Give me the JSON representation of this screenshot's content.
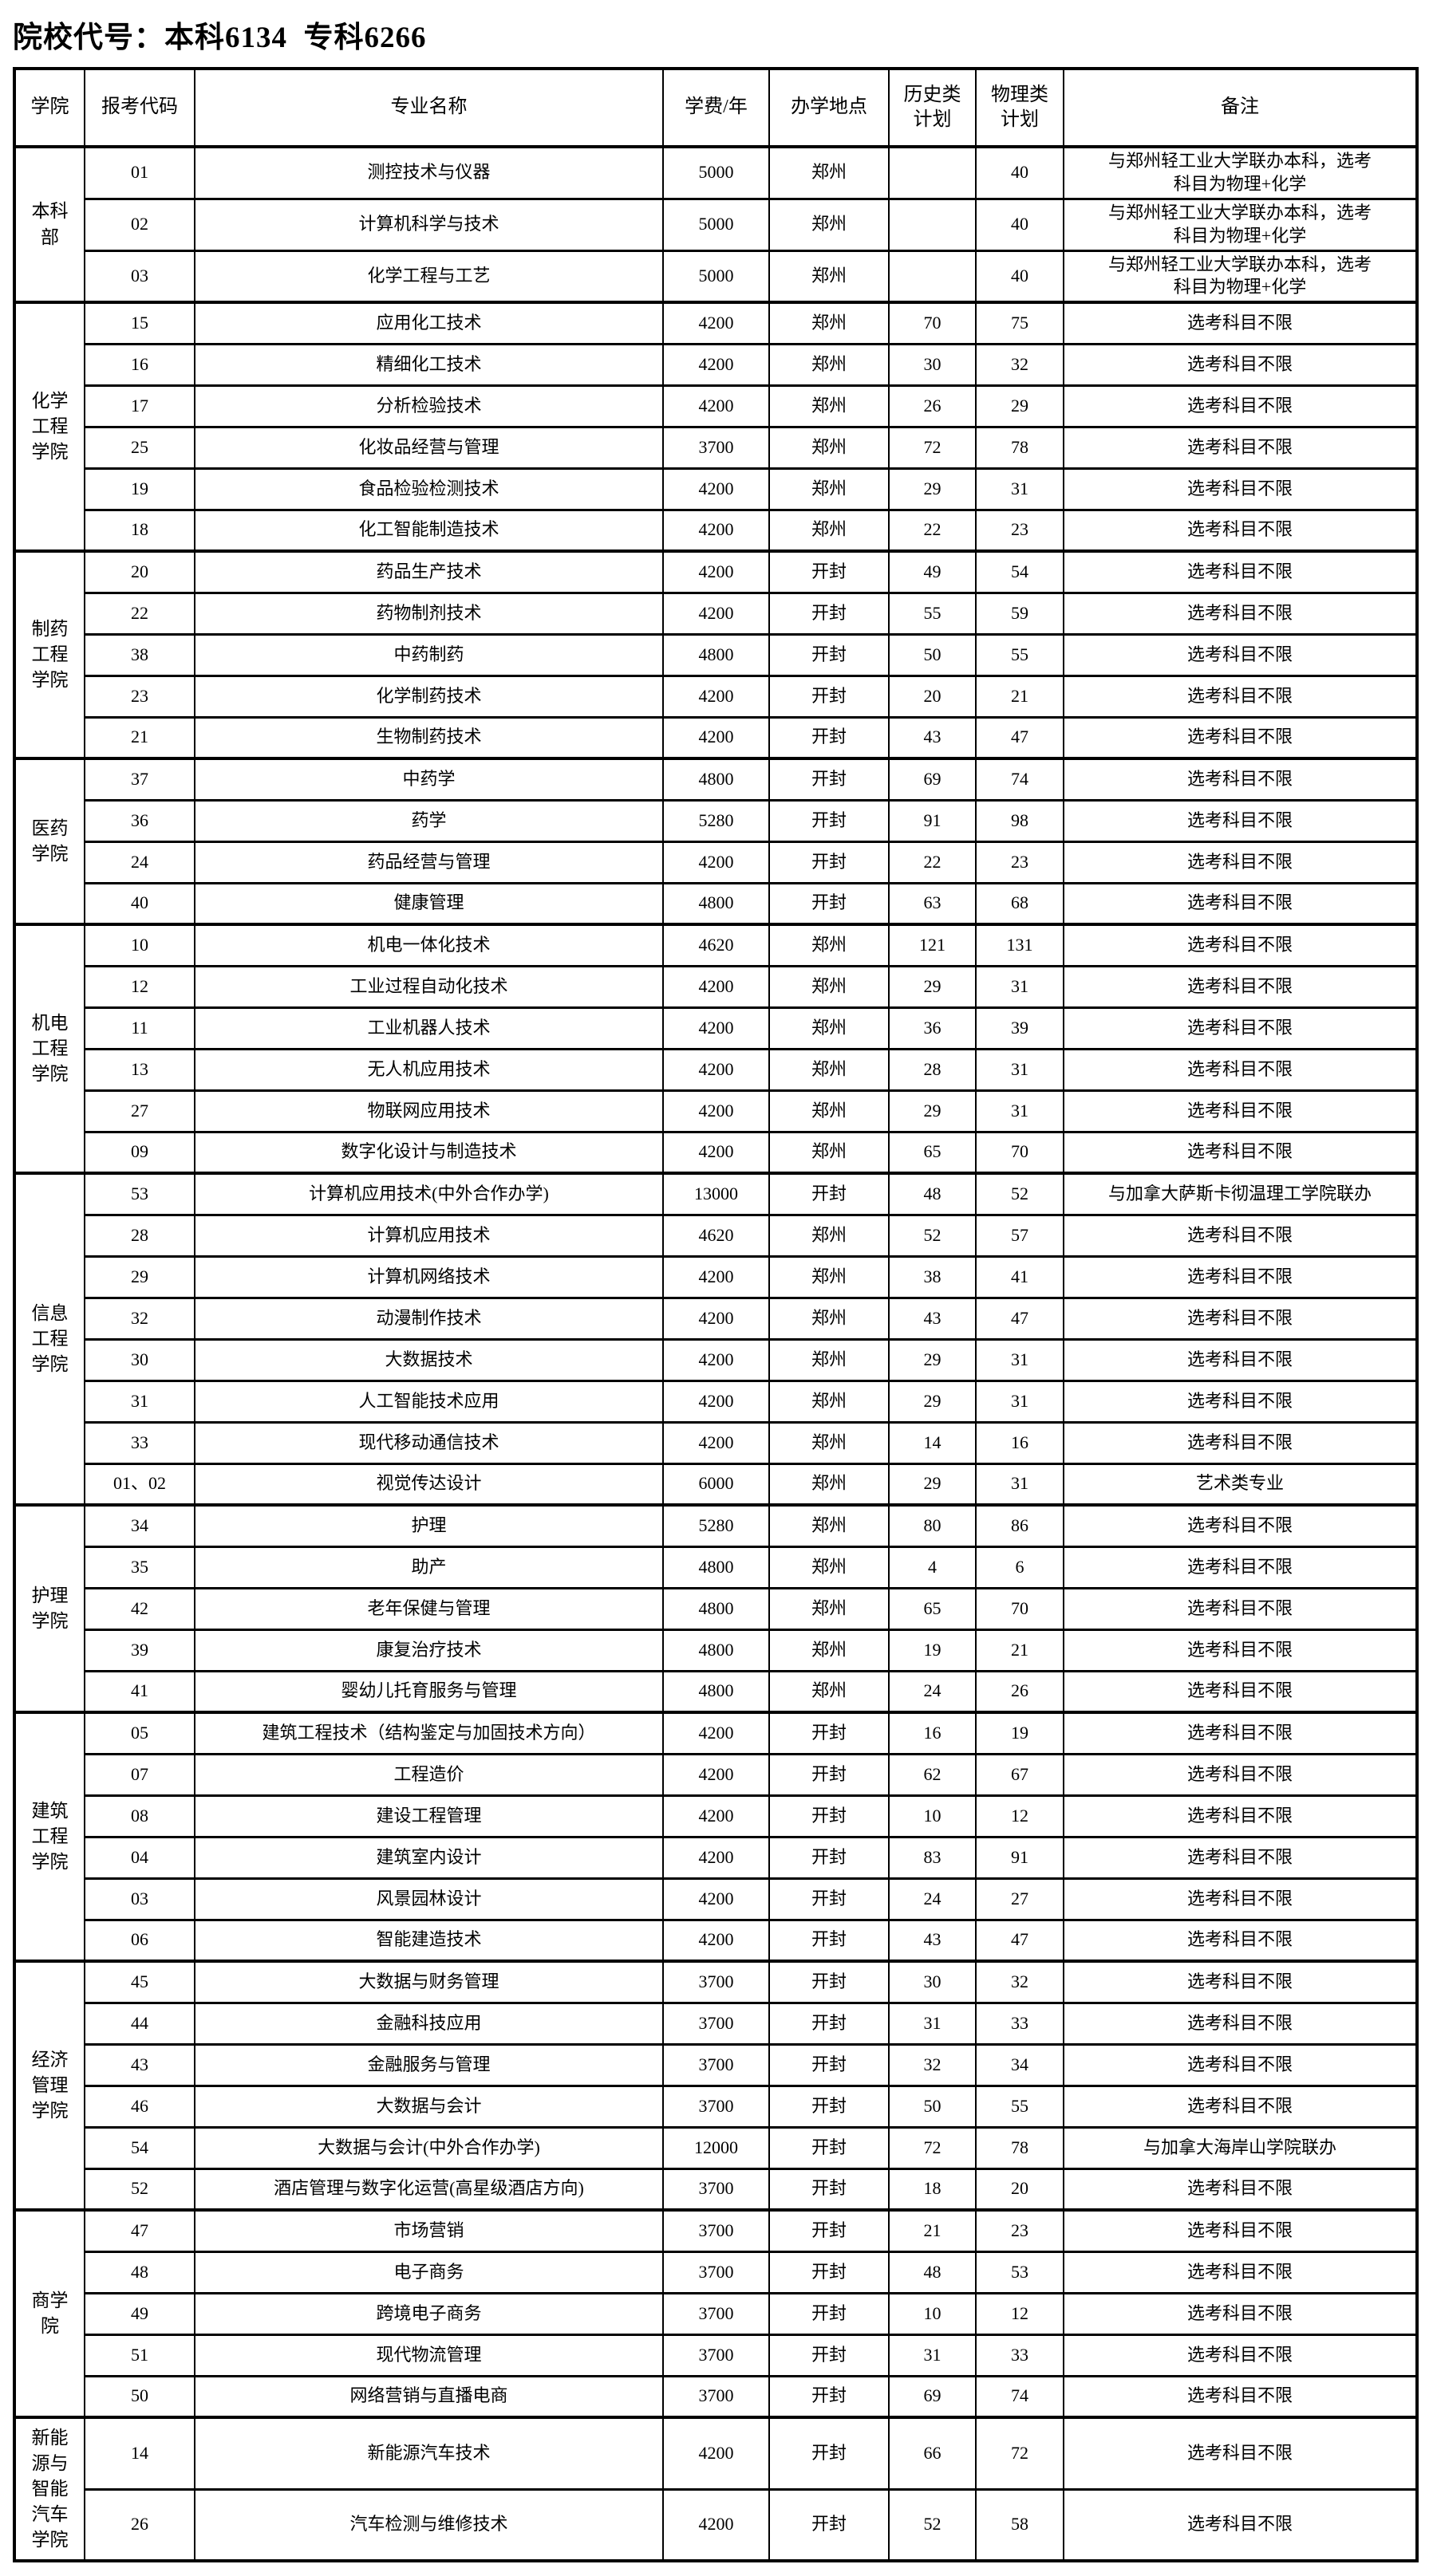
{
  "title": "院校代号：本科6134  专科6266",
  "table": {
    "columns": [
      "学院",
      "报考代码",
      "专业名称",
      "学费/年",
      "办学地点",
      "历史类\n计划",
      "物理类\n计划",
      "备注"
    ],
    "sections": [
      {
        "college": "本科\n部",
        "rows": [
          {
            "code": "01",
            "major": "测控技术与仪器",
            "fee": "5000",
            "place": "郑州",
            "hist": "",
            "phys": "40",
            "remark": "与郑州轻工业大学联办本科，选考\n科目为物理+化学"
          },
          {
            "code": "02",
            "major": "计算机科学与技术",
            "fee": "5000",
            "place": "郑州",
            "hist": "",
            "phys": "40",
            "remark": "与郑州轻工业大学联办本科，选考\n科目为物理+化学"
          },
          {
            "code": "03",
            "major": "化学工程与工艺",
            "fee": "5000",
            "place": "郑州",
            "hist": "",
            "phys": "40",
            "remark": "与郑州轻工业大学联办本科，选考\n科目为物理+化学"
          }
        ]
      },
      {
        "college": "化学\n工程\n学院",
        "rows": [
          {
            "code": "15",
            "major": "应用化工技术",
            "fee": "4200",
            "place": "郑州",
            "hist": "70",
            "phys": "75",
            "remark": "选考科目不限"
          },
          {
            "code": "16",
            "major": "精细化工技术",
            "fee": "4200",
            "place": "郑州",
            "hist": "30",
            "phys": "32",
            "remark": "选考科目不限"
          },
          {
            "code": "17",
            "major": "分析检验技术",
            "fee": "4200",
            "place": "郑州",
            "hist": "26",
            "phys": "29",
            "remark": "选考科目不限"
          },
          {
            "code": "25",
            "major": "化妆品经营与管理",
            "fee": "3700",
            "place": "郑州",
            "hist": "72",
            "phys": "78",
            "remark": "选考科目不限"
          },
          {
            "code": "19",
            "major": "食品检验检测技术",
            "fee": "4200",
            "place": "郑州",
            "hist": "29",
            "phys": "31",
            "remark": "选考科目不限"
          },
          {
            "code": "18",
            "major": "化工智能制造技术",
            "fee": "4200",
            "place": "郑州",
            "hist": "22",
            "phys": "23",
            "remark": "选考科目不限"
          }
        ]
      },
      {
        "college": "制药\n工程\n学院",
        "rows": [
          {
            "code": "20",
            "major": "药品生产技术",
            "fee": "4200",
            "place": "开封",
            "hist": "49",
            "phys": "54",
            "remark": "选考科目不限"
          },
          {
            "code": "22",
            "major": "药物制剂技术",
            "fee": "4200",
            "place": "开封",
            "hist": "55",
            "phys": "59",
            "remark": "选考科目不限"
          },
          {
            "code": "38",
            "major": "中药制药",
            "fee": "4800",
            "place": "开封",
            "hist": "50",
            "phys": "55",
            "remark": "选考科目不限"
          },
          {
            "code": "23",
            "major": "化学制药技术",
            "fee": "4200",
            "place": "开封",
            "hist": "20",
            "phys": "21",
            "remark": "选考科目不限"
          },
          {
            "code": "21",
            "major": "生物制药技术",
            "fee": "4200",
            "place": "开封",
            "hist": "43",
            "phys": "47",
            "remark": "选考科目不限"
          }
        ]
      },
      {
        "college": "医药\n学院",
        "rows": [
          {
            "code": "37",
            "major": "中药学",
            "fee": "4800",
            "place": "开封",
            "hist": "69",
            "phys": "74",
            "remark": "选考科目不限"
          },
          {
            "code": "36",
            "major": "药学",
            "fee": "5280",
            "place": "开封",
            "hist": "91",
            "phys": "98",
            "remark": "选考科目不限"
          },
          {
            "code": "24",
            "major": "药品经营与管理",
            "fee": "4200",
            "place": "开封",
            "hist": "22",
            "phys": "23",
            "remark": "选考科目不限"
          },
          {
            "code": "40",
            "major": "健康管理",
            "fee": "4800",
            "place": "开封",
            "hist": "63",
            "phys": "68",
            "remark": "选考科目不限"
          }
        ]
      },
      {
        "college": "机电\n工程\n学院",
        "rows": [
          {
            "code": "10",
            "major": "机电一体化技术",
            "fee": "4620",
            "place": "郑州",
            "hist": "121",
            "phys": "131",
            "remark": "选考科目不限"
          },
          {
            "code": "12",
            "major": "工业过程自动化技术",
            "fee": "4200",
            "place": "郑州",
            "hist": "29",
            "phys": "31",
            "remark": "选考科目不限"
          },
          {
            "code": "11",
            "major": "工业机器人技术",
            "fee": "4200",
            "place": "郑州",
            "hist": "36",
            "phys": "39",
            "remark": "选考科目不限"
          },
          {
            "code": "13",
            "major": "无人机应用技术",
            "fee": "4200",
            "place": "郑州",
            "hist": "28",
            "phys": "31",
            "remark": "选考科目不限"
          },
          {
            "code": "27",
            "major": "物联网应用技术",
            "fee": "4200",
            "place": "郑州",
            "hist": "29",
            "phys": "31",
            "remark": "选考科目不限"
          },
          {
            "code": "09",
            "major": "数字化设计与制造技术",
            "fee": "4200",
            "place": "郑州",
            "hist": "65",
            "phys": "70",
            "remark": "选考科目不限"
          }
        ]
      },
      {
        "college": "信息\n工程\n学院",
        "rows": [
          {
            "code": "53",
            "major": "计算机应用技术(中外合作办学)",
            "fee": "13000",
            "place": "开封",
            "hist": "48",
            "phys": "52",
            "remark": "与加拿大萨斯卡彻温理工学院联办"
          },
          {
            "code": "28",
            "major": "计算机应用技术",
            "fee": "4620",
            "place": "郑州",
            "hist": "52",
            "phys": "57",
            "remark": "选考科目不限"
          },
          {
            "code": "29",
            "major": "计算机网络技术",
            "fee": "4200",
            "place": "郑州",
            "hist": "38",
            "phys": "41",
            "remark": "选考科目不限"
          },
          {
            "code": "32",
            "major": "动漫制作技术",
            "fee": "4200",
            "place": "郑州",
            "hist": "43",
            "phys": "47",
            "remark": "选考科目不限"
          },
          {
            "code": "30",
            "major": "大数据技术",
            "fee": "4200",
            "place": "郑州",
            "hist": "29",
            "phys": "31",
            "remark": "选考科目不限"
          },
          {
            "code": "31",
            "major": "人工智能技术应用",
            "fee": "4200",
            "place": "郑州",
            "hist": "29",
            "phys": "31",
            "remark": "选考科目不限"
          },
          {
            "code": "33",
            "major": "现代移动通信技术",
            "fee": "4200",
            "place": "郑州",
            "hist": "14",
            "phys": "16",
            "remark": "选考科目不限"
          },
          {
            "code": "01、02",
            "major": "视觉传达设计",
            "fee": "6000",
            "place": "郑州",
            "hist": "29",
            "phys": "31",
            "remark": "艺术类专业"
          }
        ]
      },
      {
        "college": "护理\n学院",
        "rows": [
          {
            "code": "34",
            "major": "护理",
            "fee": "5280",
            "place": "郑州",
            "hist": "80",
            "phys": "86",
            "remark": "选考科目不限"
          },
          {
            "code": "35",
            "major": "助产",
            "fee": "4800",
            "place": "郑州",
            "hist": "4",
            "phys": "6",
            "remark": "选考科目不限"
          },
          {
            "code": "42",
            "major": "老年保健与管理",
            "fee": "4800",
            "place": "郑州",
            "hist": "65",
            "phys": "70",
            "remark": "选考科目不限"
          },
          {
            "code": "39",
            "major": "康复治疗技术",
            "fee": "4800",
            "place": "郑州",
            "hist": "19",
            "phys": "21",
            "remark": "选考科目不限"
          },
          {
            "code": "41",
            "major": "婴幼儿托育服务与管理",
            "fee": "4800",
            "place": "郑州",
            "hist": "24",
            "phys": "26",
            "remark": "选考科目不限"
          }
        ]
      },
      {
        "college": "建筑\n工程\n学院",
        "rows": [
          {
            "code": "05",
            "major": "建筑工程技术（结构鉴定与加固技术方向）",
            "fee": "4200",
            "place": "开封",
            "hist": "16",
            "phys": "19",
            "remark": "选考科目不限"
          },
          {
            "code": "07",
            "major": "工程造价",
            "fee": "4200",
            "place": "开封",
            "hist": "62",
            "phys": "67",
            "remark": "选考科目不限"
          },
          {
            "code": "08",
            "major": "建设工程管理",
            "fee": "4200",
            "place": "开封",
            "hist": "10",
            "phys": "12",
            "remark": "选考科目不限"
          },
          {
            "code": "04",
            "major": "建筑室内设计",
            "fee": "4200",
            "place": "开封",
            "hist": "83",
            "phys": "91",
            "remark": "选考科目不限"
          },
          {
            "code": "03",
            "major": "风景园林设计",
            "fee": "4200",
            "place": "开封",
            "hist": "24",
            "phys": "27",
            "remark": "选考科目不限"
          },
          {
            "code": "06",
            "major": "智能建造技术",
            "fee": "4200",
            "place": "开封",
            "hist": "43",
            "phys": "47",
            "remark": "选考科目不限"
          }
        ]
      },
      {
        "college": "经济\n管理\n学院",
        "rows": [
          {
            "code": "45",
            "major": "大数据与财务管理",
            "fee": "3700",
            "place": "开封",
            "hist": "30",
            "phys": "32",
            "remark": "选考科目不限"
          },
          {
            "code": "44",
            "major": "金融科技应用",
            "fee": "3700",
            "place": "开封",
            "hist": "31",
            "phys": "33",
            "remark": "选考科目不限"
          },
          {
            "code": "43",
            "major": "金融服务与管理",
            "fee": "3700",
            "place": "开封",
            "hist": "32",
            "phys": "34",
            "remark": "选考科目不限"
          },
          {
            "code": "46",
            "major": "大数据与会计",
            "fee": "3700",
            "place": "开封",
            "hist": "50",
            "phys": "55",
            "remark": "选考科目不限"
          },
          {
            "code": "54",
            "major": "大数据与会计(中外合作办学)",
            "fee": "12000",
            "place": "开封",
            "hist": "72",
            "phys": "78",
            "remark": "与加拿大海岸山学院联办"
          },
          {
            "code": "52",
            "major": "酒店管理与数字化运营(高星级酒店方向)",
            "fee": "3700",
            "place": "开封",
            "hist": "18",
            "phys": "20",
            "remark": "选考科目不限"
          }
        ]
      },
      {
        "college": "商学\n院",
        "rows": [
          {
            "code": "47",
            "major": "市场营销",
            "fee": "3700",
            "place": "开封",
            "hist": "21",
            "phys": "23",
            "remark": "选考科目不限"
          },
          {
            "code": "48",
            "major": "电子商务",
            "fee": "3700",
            "place": "开封",
            "hist": "48",
            "phys": "53",
            "remark": "选考科目不限"
          },
          {
            "code": "49",
            "major": "跨境电子商务",
            "fee": "3700",
            "place": "开封",
            "hist": "10",
            "phys": "12",
            "remark": "选考科目不限"
          },
          {
            "code": "51",
            "major": "现代物流管理",
            "fee": "3700",
            "place": "开封",
            "hist": "31",
            "phys": "33",
            "remark": "选考科目不限"
          },
          {
            "code": "50",
            "major": "网络营销与直播电商",
            "fee": "3700",
            "place": "开封",
            "hist": "69",
            "phys": "74",
            "remark": "选考科目不限"
          }
        ]
      },
      {
        "college": "新能\n源与\n智能\n汽车\n学院",
        "rows": [
          {
            "code": "14",
            "major": "新能源汽车技术",
            "fee": "4200",
            "place": "开封",
            "hist": "66",
            "phys": "72",
            "remark": "选考科目不限"
          },
          {
            "code": "26",
            "major": "汽车检测与维修技术",
            "fee": "4200",
            "place": "开封",
            "hist": "52",
            "phys": "58",
            "remark": "选考科目不限"
          }
        ]
      }
    ]
  }
}
